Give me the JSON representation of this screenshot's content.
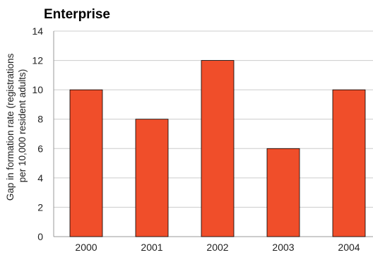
{
  "chart_data": {
    "type": "bar",
    "title": "Enterprise",
    "xlabel": "",
    "ylabel": [
      "Gap in formation rate (registrations",
      "per 10,000 resident adults)"
    ],
    "categories": [
      "2000",
      "2001",
      "2002",
      "2003",
      "2004"
    ],
    "values": [
      10,
      8,
      12,
      6,
      10
    ],
    "ylim": [
      0,
      14
    ],
    "yticks": [
      "0",
      "2",
      "4",
      "6",
      "8",
      "10",
      "12",
      "14"
    ],
    "grid": true,
    "legend": "none",
    "bar_color": "#f04e2a"
  }
}
